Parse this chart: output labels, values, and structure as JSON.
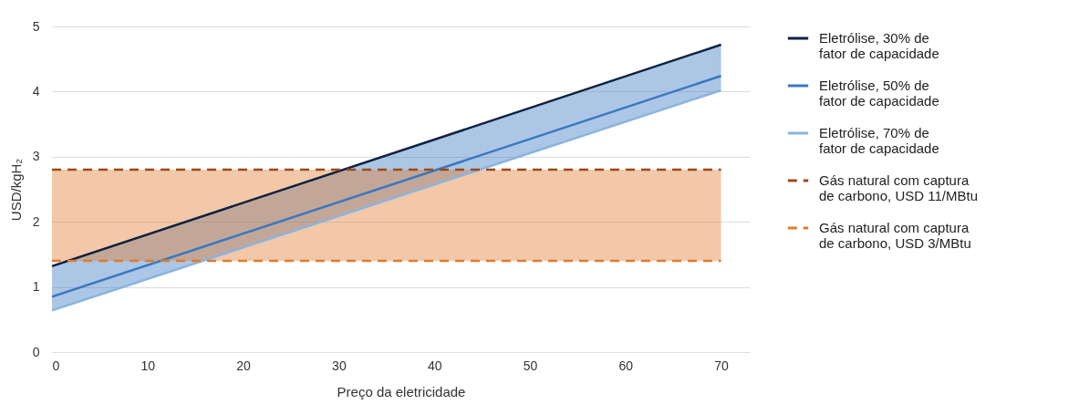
{
  "chart_data": {
    "type": "line",
    "xlabel": "Preço da eletricidade",
    "ylabel": "USD/kgH₂",
    "xlim": [
      0,
      73
    ],
    "xticks": [
      0,
      10,
      20,
      30,
      40,
      50,
      60,
      70
    ],
    "ylim": [
      0,
      5
    ],
    "yticks": [
      0,
      1,
      2,
      3,
      4,
      5
    ],
    "grid": "y",
    "legend": "right",
    "marker": "none",
    "x": [
      0,
      70
    ],
    "series": [
      {
        "name": "Eletrólise, 30% de fator de capacidade",
        "color": "#0d2240",
        "values": [
          1.32,
          4.72
        ]
      },
      {
        "name": "Eletrólise, 50% de fator de capacidade",
        "color": "#3a78c0",
        "values": [
          0.85,
          4.24
        ],
        "lower": [
          0.64,
          4.02
        ],
        "upper": [
          1.32,
          4.72
        ]
      },
      {
        "name": "Eletrólise, 70% de fator de capacidade",
        "color": "#8ab4e0",
        "values": [
          0.64,
          4.02
        ]
      },
      {
        "name": "Gás natural com captura de carbono, USD 11/MBtu",
        "color": "#9c4a1a",
        "values": [
          2.8,
          2.8
        ],
        "line_style": "dashed"
      },
      {
        "name": "Gás natural com captura de carbono, USD 3/MBtu",
        "color": "#e07b30",
        "values": [
          1.4,
          1.4
        ],
        "line_style": "dashed",
        "lower": [
          1.4,
          1.4
        ],
        "upper": [
          2.8,
          2.8
        ]
      }
    ]
  }
}
